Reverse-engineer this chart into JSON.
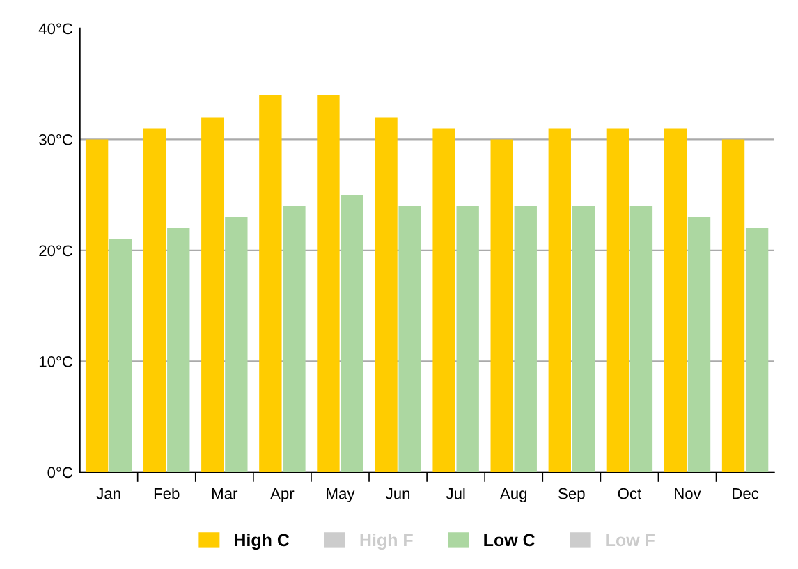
{
  "chart_data": {
    "type": "bar",
    "categories": [
      "Jan",
      "Feb",
      "Mar",
      "Apr",
      "May",
      "Jun",
      "Jul",
      "Aug",
      "Sep",
      "Oct",
      "Nov",
      "Dec"
    ],
    "series": [
      {
        "name": "High C",
        "color": "#ffcc00",
        "values": [
          30,
          31,
          32,
          34,
          34,
          32,
          31,
          30,
          31,
          31,
          31,
          30
        ]
      },
      {
        "name": "High F",
        "color": "#cccccc",
        "values": [
          null,
          null,
          null,
          null,
          null,
          null,
          null,
          null,
          null,
          null,
          null,
          null
        ]
      },
      {
        "name": "Low C",
        "color": "#acd7a1",
        "values": [
          21,
          22,
          23,
          24,
          25,
          24,
          24,
          24,
          24,
          24,
          23,
          22
        ]
      },
      {
        "name": "Low F",
        "color": "#cccccc",
        "values": [
          null,
          null,
          null,
          null,
          null,
          null,
          null,
          null,
          null,
          null,
          null,
          null
        ]
      }
    ],
    "ylim": [
      0,
      40
    ],
    "yticks": [
      {
        "value": 0,
        "label": "0°C"
      },
      {
        "value": 10,
        "label": "10°C"
      },
      {
        "value": 20,
        "label": "20°C"
      },
      {
        "value": 30,
        "label": "30°C"
      },
      {
        "value": 40,
        "label": "40°C"
      }
    ],
    "grid": "y",
    "legend": "bottom"
  }
}
